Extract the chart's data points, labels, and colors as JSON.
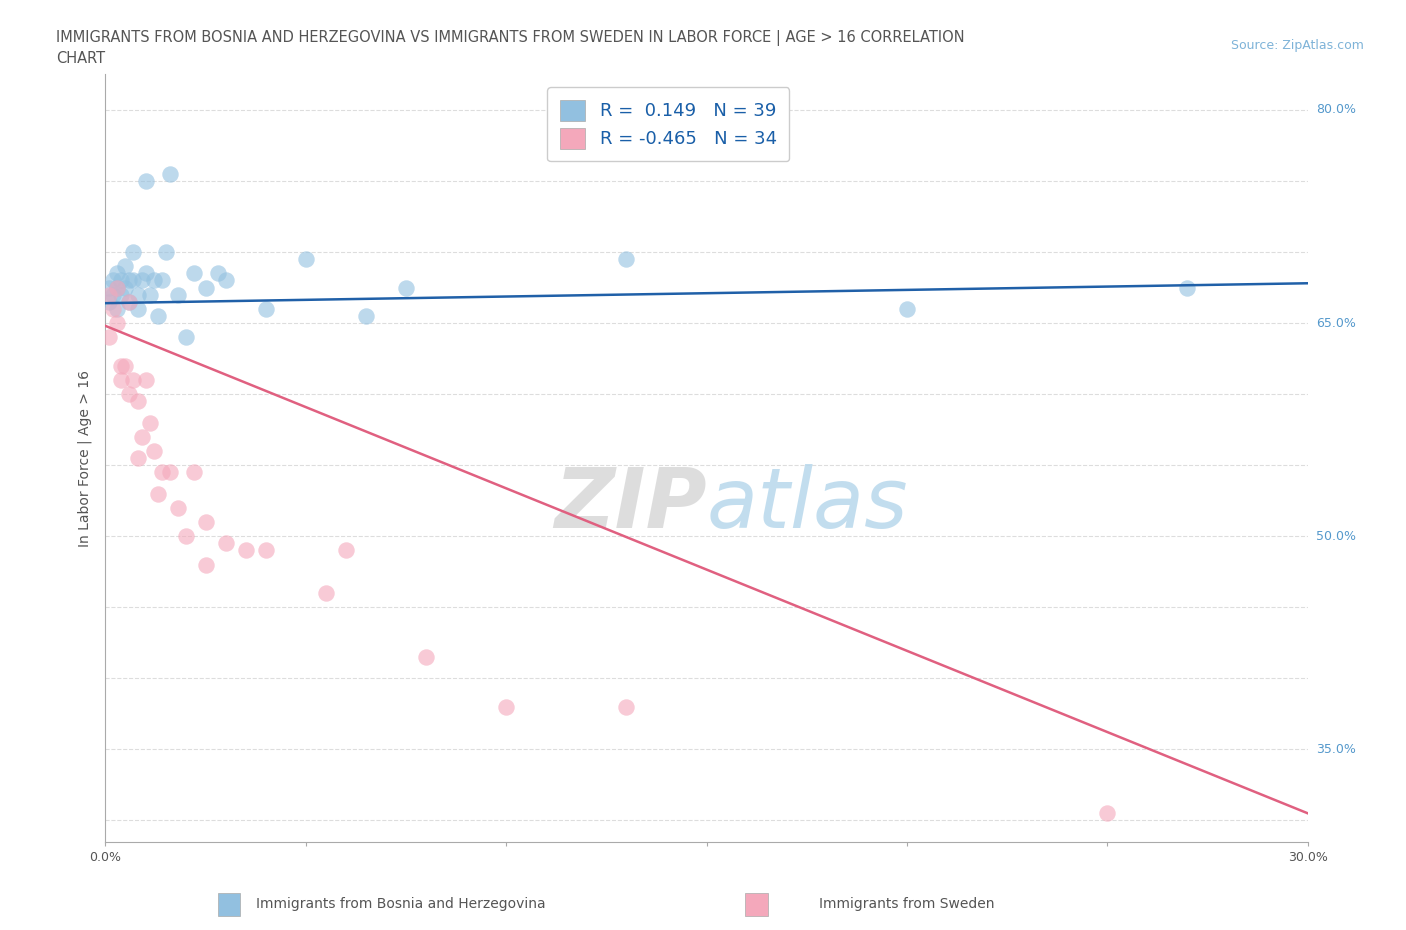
{
  "title_line1": "IMMIGRANTS FROM BOSNIA AND HERZEGOVINA VS IMMIGRANTS FROM SWEDEN IN LABOR FORCE | AGE > 16 CORRELATION",
  "title_line2": "CHART",
  "source_text": "Source: ZipAtlas.com",
  "ylabel": "In Labor Force | Age > 16",
  "xlim": [
    0.0,
    0.3
  ],
  "ylim": [
    0.285,
    0.825
  ],
  "x_ticks": [
    0.0,
    0.05,
    0.1,
    0.15,
    0.2,
    0.25,
    0.3
  ],
  "x_tick_labels": [
    "0.0%",
    "",
    "",
    "",
    "",
    "",
    "30.0%"
  ],
  "y_ticks": [
    0.3,
    0.35,
    0.4,
    0.45,
    0.5,
    0.55,
    0.6,
    0.65,
    0.7,
    0.75,
    0.8
  ],
  "y_tick_right_labels": {
    "0.80": "80.0%",
    "0.75": "",
    "0.70": "",
    "0.65": "65.0%",
    "0.60": "",
    "0.55": "",
    "0.50": "50.0%",
    "0.45": "",
    "0.40": "",
    "0.35": "35.0%",
    "0.30": ""
  },
  "bosnia_color": "#92c0e0",
  "sweden_color": "#f4a8bb",
  "bosnia_line_color": "#2060a8",
  "sweden_line_color": "#e06080",
  "bosnia_R": 0.149,
  "bosnia_N": 39,
  "sweden_R": -0.465,
  "sweden_N": 34,
  "bosnia_scatter_x": [
    0.001,
    0.001,
    0.002,
    0.002,
    0.003,
    0.003,
    0.003,
    0.004,
    0.004,
    0.005,
    0.005,
    0.006,
    0.006,
    0.007,
    0.007,
    0.008,
    0.008,
    0.009,
    0.01,
    0.01,
    0.011,
    0.012,
    0.013,
    0.014,
    0.015,
    0.016,
    0.018,
    0.02,
    0.022,
    0.025,
    0.028,
    0.03,
    0.04,
    0.05,
    0.065,
    0.075,
    0.13,
    0.2,
    0.27
  ],
  "bosnia_scatter_y": [
    0.675,
    0.665,
    0.68,
    0.67,
    0.685,
    0.675,
    0.66,
    0.68,
    0.67,
    0.69,
    0.675,
    0.68,
    0.665,
    0.7,
    0.68,
    0.67,
    0.66,
    0.68,
    0.75,
    0.685,
    0.67,
    0.68,
    0.655,
    0.68,
    0.7,
    0.755,
    0.67,
    0.64,
    0.685,
    0.675,
    0.685,
    0.68,
    0.66,
    0.695,
    0.655,
    0.675,
    0.695,
    0.66,
    0.675
  ],
  "sweden_scatter_x": [
    0.001,
    0.001,
    0.002,
    0.003,
    0.003,
    0.004,
    0.004,
    0.005,
    0.006,
    0.006,
    0.007,
    0.008,
    0.008,
    0.009,
    0.01,
    0.011,
    0.012,
    0.013,
    0.014,
    0.016,
    0.018,
    0.02,
    0.022,
    0.025,
    0.025,
    0.03,
    0.035,
    0.04,
    0.055,
    0.06,
    0.08,
    0.1,
    0.13,
    0.25
  ],
  "sweden_scatter_y": [
    0.67,
    0.64,
    0.66,
    0.675,
    0.65,
    0.62,
    0.61,
    0.62,
    0.665,
    0.6,
    0.61,
    0.595,
    0.555,
    0.57,
    0.61,
    0.58,
    0.56,
    0.53,
    0.545,
    0.545,
    0.52,
    0.5,
    0.545,
    0.51,
    0.48,
    0.495,
    0.49,
    0.49,
    0.46,
    0.49,
    0.415,
    0.38,
    0.38,
    0.305
  ],
  "bosnia_regline_x": [
    0.0,
    0.3
  ],
  "bosnia_regline_y": [
    0.664,
    0.678
  ],
  "sweden_regline_x": [
    0.0,
    0.3
  ],
  "sweden_regline_y": [
    0.648,
    0.305
  ]
}
